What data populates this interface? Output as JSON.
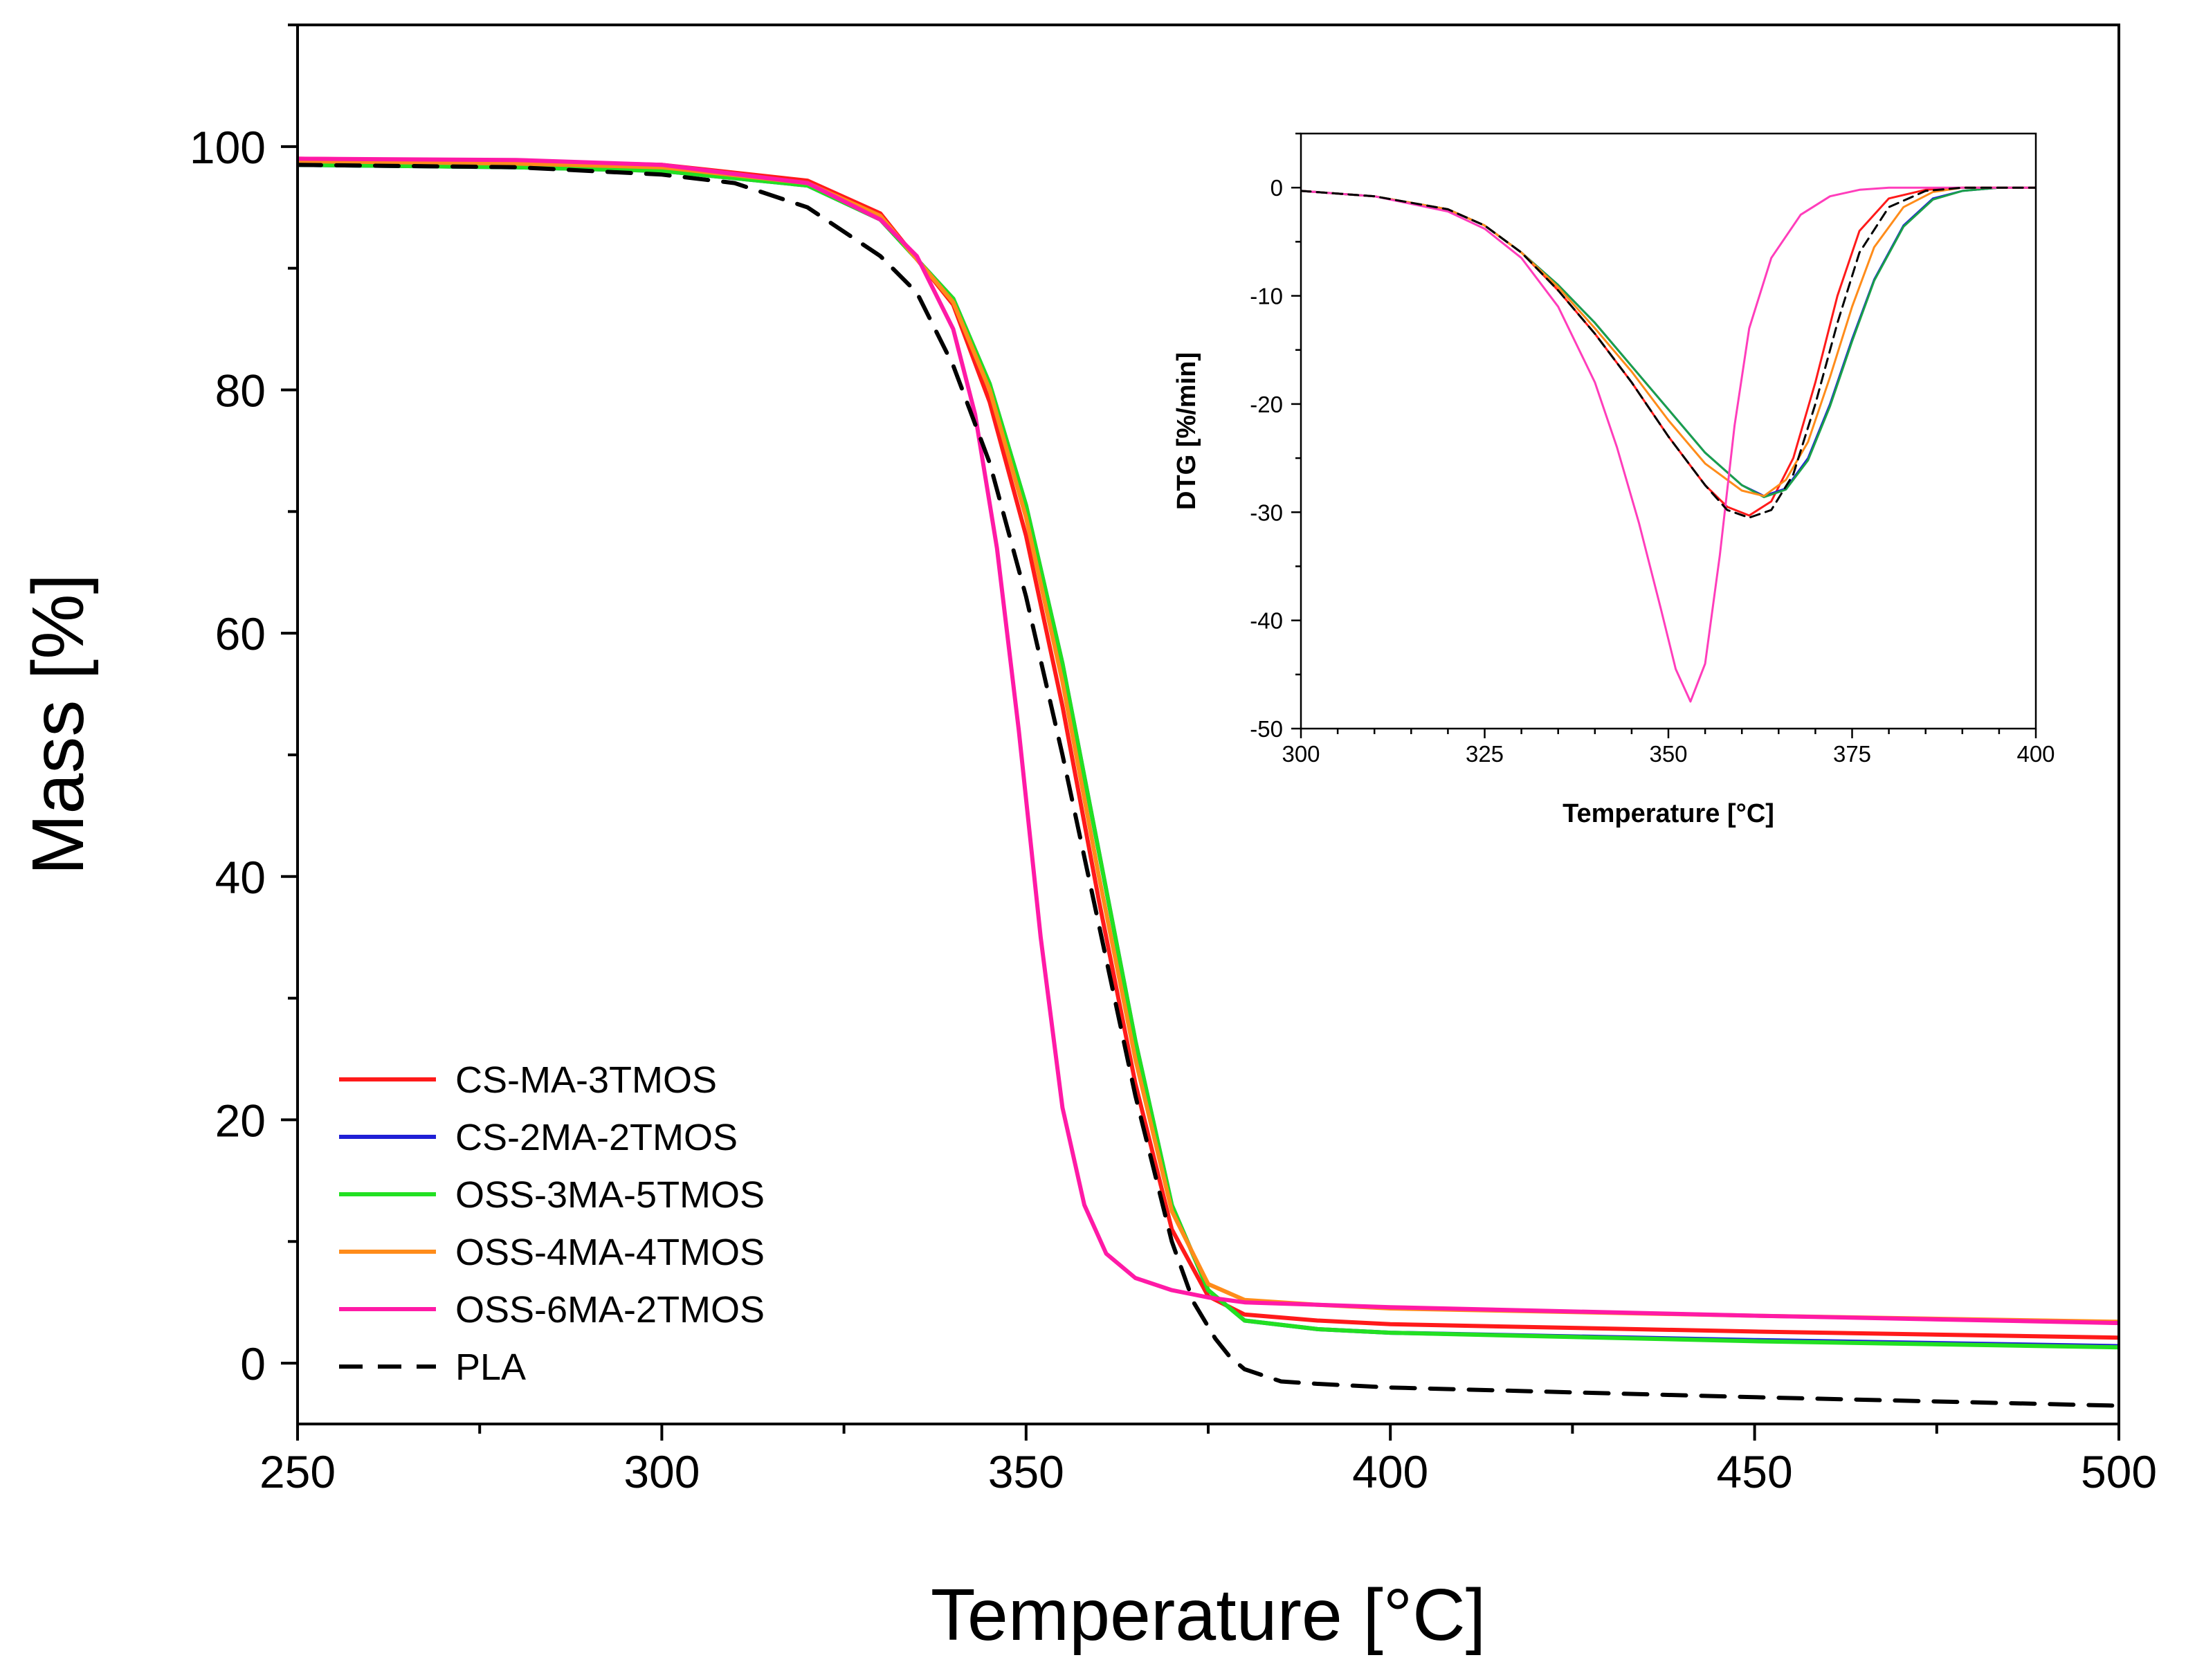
{
  "chart_data": [
    {
      "type": "line",
      "title": "",
      "xlabel": "Temperature [°C]",
      "ylabel": "Mass [%]",
      "xlim": [
        250,
        500
      ],
      "ylim": [
        -5,
        110
      ],
      "xticks": [
        250,
        300,
        350,
        400,
        450,
        500
      ],
      "yticks": [
        0,
        20,
        40,
        60,
        80,
        100
      ],
      "legend_position": "bottom-left",
      "series": [
        {
          "name": "CS-MA-3TMOS",
          "color": "#ff1a1a",
          "dash": "solid",
          "x": [
            250,
            280,
            300,
            320,
            330,
            340,
            345,
            350,
            355,
            360,
            365,
            370,
            375,
            380,
            390,
            400,
            450,
            500
          ],
          "y": [
            99.0,
            98.8,
            98.5,
            97.2,
            94.5,
            87.0,
            79.0,
            68.0,
            54.0,
            38.0,
            23.0,
            11.0,
            5.5,
            4.0,
            3.5,
            3.2,
            2.6,
            2.1
          ]
        },
        {
          "name": "CS-2MA-2TMOS",
          "color": "#1f1fd6",
          "dash": "solid",
          "x": [
            250,
            280,
            300,
            320,
            330,
            340,
            345,
            350,
            355,
            360,
            365,
            370,
            375,
            380,
            390,
            400,
            450,
            500
          ],
          "y": [
            98.5,
            98.3,
            98.0,
            96.8,
            94.0,
            87.5,
            80.5,
            70.5,
            57.5,
            42.0,
            26.5,
            13.0,
            6.0,
            3.5,
            2.8,
            2.5,
            1.9,
            1.4
          ]
        },
        {
          "name": "OSS-3MA-5TMOS",
          "color": "#22e022",
          "dash": "solid",
          "x": [
            250,
            280,
            300,
            320,
            330,
            340,
            345,
            350,
            355,
            360,
            365,
            370,
            375,
            380,
            390,
            400,
            450,
            500
          ],
          "y": [
            98.5,
            98.3,
            98.0,
            96.8,
            94.0,
            87.5,
            80.5,
            70.5,
            57.5,
            42.0,
            26.5,
            13.0,
            6.0,
            3.5,
            2.8,
            2.5,
            1.8,
            1.3
          ]
        },
        {
          "name": "OSS-4MA-4TMOS",
          "color": "#ff8c1a",
          "dash": "solid",
          "x": [
            250,
            280,
            300,
            320,
            330,
            340,
            345,
            350,
            355,
            360,
            365,
            370,
            375,
            380,
            390,
            400,
            450,
            500
          ],
          "y": [
            98.8,
            98.6,
            98.3,
            97.0,
            94.3,
            87.2,
            80.0,
            69.5,
            56.0,
            40.0,
            25.0,
            12.5,
            6.5,
            5.2,
            4.8,
            4.5,
            3.9,
            3.4
          ]
        },
        {
          "name": "OSS-6MA-2TMOS",
          "color": "#ff1aa6",
          "dash": "solid",
          "x": [
            250,
            280,
            300,
            320,
            330,
            335,
            340,
            343,
            346,
            349,
            352,
            355,
            358,
            361,
            365,
            370,
            375,
            380,
            400,
            450,
            500
          ],
          "y": [
            99.0,
            98.9,
            98.5,
            97.0,
            94.0,
            91.0,
            85.0,
            78.0,
            67.0,
            52.0,
            35.0,
            21.0,
            13.0,
            9.0,
            7.0,
            6.0,
            5.4,
            5.0,
            4.6,
            3.9,
            3.3
          ]
        },
        {
          "name": "PLA",
          "color": "#000000",
          "dash": "dashed",
          "x": [
            250,
            280,
            300,
            310,
            320,
            330,
            335,
            340,
            345,
            350,
            355,
            360,
            365,
            370,
            373,
            376,
            378,
            380,
            385,
            390,
            400,
            450,
            500
          ],
          "y": [
            98.5,
            98.3,
            97.7,
            97.0,
            95.0,
            91.0,
            88.0,
            82.0,
            74.0,
            63.0,
            50.0,
            36.0,
            22.0,
            10.0,
            5.0,
            2.0,
            0.5,
            -0.5,
            -1.5,
            -1.7,
            -2.0,
            -2.8,
            -3.5
          ]
        }
      ]
    },
    {
      "type": "line",
      "title": "",
      "xlabel": "Temperature [°C]",
      "ylabel": "DTG [%/min]",
      "xlim": [
        300,
        400
      ],
      "ylim": [
        -50,
        5
      ],
      "xticks": [
        300,
        325,
        350,
        375,
        400
      ],
      "yticks": [
        0,
        -10,
        -20,
        -30,
        -40,
        -50
      ],
      "series": [
        {
          "name": "CS-MA-3TMOS",
          "color": "#ff1a1a",
          "dash": "solid",
          "x": [
            300,
            310,
            320,
            325,
            330,
            335,
            340,
            345,
            350,
            355,
            358,
            361,
            364,
            367,
            370,
            373,
            376,
            380,
            385,
            390,
            400
          ],
          "y": [
            -0.3,
            -0.8,
            -2.0,
            -3.5,
            -6.0,
            -9.5,
            -13.5,
            -18.0,
            -23.0,
            -27.5,
            -29.5,
            -30.3,
            -29.0,
            -25.0,
            -18.0,
            -10.0,
            -4.0,
            -1.0,
            -0.2,
            0,
            0
          ]
        },
        {
          "name": "CS-2MA-2TMOS",
          "color": "#1f1fd6",
          "dash": "solid",
          "x": [
            300,
            310,
            320,
            325,
            330,
            335,
            340,
            345,
            350,
            355,
            360,
            363,
            366,
            369,
            372,
            375,
            378,
            382,
            386,
            390,
            395,
            400
          ],
          "y": [
            -0.3,
            -0.8,
            -2.0,
            -3.5,
            -6.0,
            -9.0,
            -12.5,
            -16.5,
            -20.5,
            -24.5,
            -27.5,
            -28.5,
            -27.8,
            -25.0,
            -20.0,
            -14.0,
            -8.5,
            -3.5,
            -1.0,
            -0.3,
            0,
            0
          ]
        },
        {
          "name": "OSS-3MA-5TMOS",
          "color": "#1aa04a",
          "dash": "solid",
          "x": [
            300,
            310,
            320,
            325,
            330,
            335,
            340,
            345,
            350,
            355,
            360,
            363,
            366,
            369,
            372,
            375,
            378,
            382,
            386,
            390,
            395,
            400
          ],
          "y": [
            -0.3,
            -0.8,
            -2.0,
            -3.5,
            -6.0,
            -9.0,
            -12.5,
            -16.5,
            -20.5,
            -24.5,
            -27.5,
            -28.6,
            -27.9,
            -25.2,
            -20.2,
            -14.2,
            -8.6,
            -3.6,
            -1.1,
            -0.3,
            0,
            0
          ]
        },
        {
          "name": "OSS-4MA-4TMOS",
          "color": "#ff8c1a",
          "dash": "solid",
          "x": [
            300,
            310,
            320,
            325,
            330,
            335,
            340,
            345,
            350,
            355,
            360,
            363,
            366,
            369,
            372,
            375,
            378,
            382,
            386,
            390,
            400
          ],
          "y": [
            -0.3,
            -0.8,
            -2.0,
            -3.5,
            -6.0,
            -9.2,
            -13.0,
            -17.0,
            -21.5,
            -25.5,
            -28.0,
            -28.5,
            -27.0,
            -23.5,
            -17.5,
            -11.0,
            -5.5,
            -1.8,
            -0.4,
            0,
            0
          ]
        },
        {
          "name": "OSS-6MA-2TMOS",
          "color": "#ff3dbb",
          "dash": "solid",
          "x": [
            300,
            310,
            320,
            325,
            330,
            335,
            340,
            343,
            346,
            349,
            351,
            353,
            355,
            357,
            359,
            361,
            364,
            368,
            372,
            376,
            380,
            390,
            400
          ],
          "y": [
            -0.3,
            -0.8,
            -2.2,
            -3.8,
            -6.5,
            -11.0,
            -18.0,
            -24.0,
            -31.0,
            -39.0,
            -44.5,
            -47.5,
            -44.0,
            -34.0,
            -22.0,
            -13.0,
            -6.5,
            -2.5,
            -0.8,
            -0.2,
            0,
            0,
            0
          ]
        },
        {
          "name": "PLA",
          "color": "#000000",
          "dash": "dashed",
          "x": [
            300,
            310,
            320,
            325,
            330,
            335,
            340,
            345,
            350,
            355,
            358,
            361,
            364,
            367,
            370,
            373,
            376,
            380,
            385,
            390,
            400
          ],
          "y": [
            -0.3,
            -0.8,
            -2.0,
            -3.5,
            -6.0,
            -9.5,
            -13.5,
            -18.0,
            -23.0,
            -27.5,
            -29.8,
            -30.5,
            -29.8,
            -26.5,
            -20.0,
            -12.5,
            -6.0,
            -1.8,
            -0.3,
            0,
            0
          ]
        }
      ]
    }
  ]
}
